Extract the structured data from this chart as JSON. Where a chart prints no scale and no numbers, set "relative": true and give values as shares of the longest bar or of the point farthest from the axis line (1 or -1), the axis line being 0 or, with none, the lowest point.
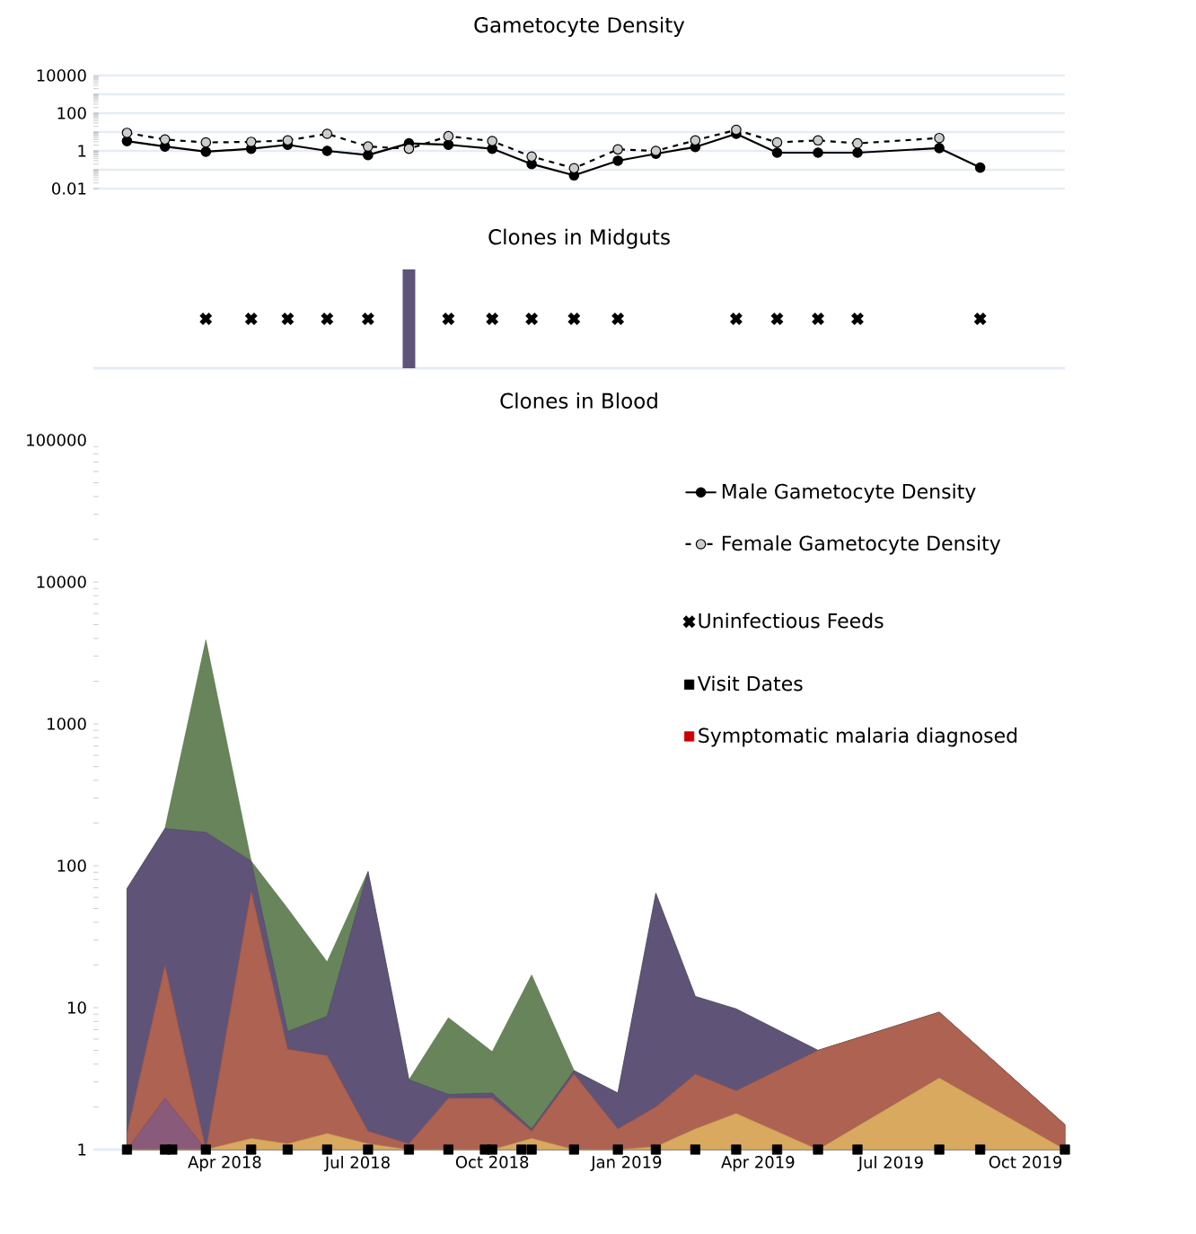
{
  "chart_data": [
    {
      "type": "line",
      "title": "Gametocyte Density",
      "xlim": [
        "2018-01-01",
        "2019-10-28"
      ],
      "ylim": [
        0.01,
        10000
      ],
      "legend": "bottom right",
      "log": true,
      "yticks": [
        0.01,
        {
          "value": 0.1,
          "label": null
        },
        1,
        {
          "value": 10,
          "label": null
        },
        100,
        {
          "value": 1000,
          "label": null
        },
        10000
      ],
      "grid": "y",
      "tick_labels": "y",
      "marker": "circle",
      "series": [
        {
          "name": "Male Gametocyte Density",
          "color": "#000000",
          "line_style": "solid",
          "x": [
            "2018-01-24",
            "2018-02-19",
            "2018-03-19",
            "2018-04-19",
            "2018-05-14",
            "2018-06-10",
            "2018-07-08",
            "2018-08-05",
            "2018-09-01",
            "2018-10-01",
            "2018-10-28",
            "2018-11-26",
            "2018-12-26",
            "2019-01-21",
            "2019-02-17",
            "2019-03-17",
            "2019-04-14",
            "2019-05-12",
            "2019-06-08",
            "2019-08-03",
            "2019-08-31"
          ],
          "values": [
            3.3,
            1.7,
            0.9,
            1.3,
            2.1,
            1,
            0.6,
            2.5,
            2.1,
            1.3,
            0.2,
            0.05,
            0.3,
            0.7,
            1.6,
            8,
            0.8,
            0.8,
            0.8,
            1.4,
            0.13
          ]
        },
        {
          "name": "Female Gametocyte Density",
          "color": "#cccccc",
          "line_style": "dashed",
          "x": [
            "2018-01-24",
            "2018-02-19",
            "2018-03-19",
            "2018-04-19",
            "2018-05-14",
            "2018-06-10",
            "2018-07-08",
            "2018-08-05",
            "2018-09-01",
            "2018-10-01",
            "2018-10-28",
            "2018-11-26",
            "2018-12-26",
            "2019-01-21",
            "2019-02-17",
            "2019-03-17",
            "2019-04-14",
            "2019-05-12",
            "2019-06-08",
            "2019-08-03"
          ],
          "values": [
            9,
            4,
            2.8,
            3,
            3.6,
            8,
            1.7,
            1.3,
            6,
            3.3,
            0.5,
            0.12,
            1.2,
            1,
            3.6,
            13,
            2.8,
            3.6,
            2.5,
            4.8
          ]
        }
      ]
    },
    {
      "type": "scatter",
      "title": "Clones in Midguts",
      "xlim": [
        "2018-01-01",
        "2019-10-28"
      ],
      "relative": true,
      "tick_labels": false,
      "legend": "bottom right",
      "series": [
        {
          "name": "Uninfectious Feeds",
          "type": "scatter",
          "marker": "cross",
          "color": "#000000",
          "x": [
            "2018-03-19",
            "2018-04-19",
            "2018-05-14",
            "2018-06-10",
            "2018-07-08",
            "2018-09-01",
            "2018-10-01",
            "2018-10-28",
            "2018-11-26",
            "2018-12-26",
            "2019-03-17",
            "2019-04-14",
            "2019-05-12",
            "2019-06-08",
            "2019-08-31"
          ],
          "values": [
            0.5,
            0.5,
            0.5,
            0.5,
            0.5,
            0.5,
            0.5,
            0.5,
            0.5,
            0.5,
            0.5,
            0.5,
            0.5,
            0.5,
            0.5
          ]
        },
        {
          "type": "bar",
          "color": "#5f5378",
          "x": [
            "2018-08-05"
          ],
          "values": [
            1
          ]
        }
      ]
    },
    {
      "type": "area",
      "title": "Clones in Blood",
      "xlim": [
        "2018-01-01",
        "2019-10-28"
      ],
      "ylim": [
        1,
        100000
      ],
      "log": true,
      "yticks": [
        1,
        10,
        100,
        1000,
        10000,
        100000
      ],
      "xticks": [
        {
          "value": "2018-04-01",
          "label": "Apr 2018"
        },
        {
          "value": "2018-07-01",
          "label": "Jul 2018"
        },
        {
          "value": "2018-10-01",
          "label": "Oct 2018"
        },
        {
          "value": "2019-01-01",
          "label": "Jan 2019"
        },
        {
          "value": "2019-04-01",
          "label": "Apr 2019"
        },
        {
          "value": "2019-07-01",
          "label": "Jul 2019"
        },
        {
          "value": "2019-10-01",
          "label": "Oct 2019"
        }
      ],
      "legend": "top right",
      "x": [
        "2018-01-24",
        "2018-02-19",
        "2018-03-19",
        "2018-04-19",
        "2018-05-14",
        "2018-06-10",
        "2018-07-08",
        "2018-08-05",
        "2018-09-01",
        "2018-10-01",
        "2018-10-28",
        "2018-11-26",
        "2018-12-26",
        "2019-01-21",
        "2019-02-17",
        "2019-03-17",
        "2019-05-12",
        "2019-08-03",
        "2019-10-28"
      ],
      "series": [
        {
          "color": "#67845a",
          "values": [
            69,
            183,
            3900,
            108,
            50,
            21,
            91,
            3.1,
            8.5,
            4.9,
            17,
            3.6,
            2.5,
            64,
            12,
            9.8,
            5,
            9.3,
            1.5
          ]
        },
        {
          "color": "#5f5378",
          "values": [
            69,
            183,
            172,
            108,
            6.8,
            8.7,
            91,
            3.1,
            2.45,
            2.5,
            1.4,
            3.6,
            2.5,
            64,
            12,
            9.8,
            5,
            9.3,
            1.5
          ]
        },
        {
          "color": "#ad6252",
          "values": [
            1.3,
            20,
            1,
            67,
            5.1,
            4.6,
            1.35,
            1.1,
            2.3,
            2.3,
            1.35,
            3.4,
            1.4,
            2,
            3.4,
            2.6,
            5,
            9.3,
            1.5
          ]
        },
        {
          "color": "#8a5a7a",
          "values": [
            1,
            2.3,
            1,
            null,
            null,
            null,
            null,
            null,
            null,
            null,
            null,
            null,
            null,
            null,
            null,
            null,
            null,
            null,
            null
          ]
        },
        {
          "color": "#d9a95f",
          "values": [
            1,
            1,
            1,
            1.2,
            1.1,
            1.3,
            1.1,
            1,
            1,
            1,
            1.2,
            1,
            1,
            1.05,
            1.4,
            1.8,
            1,
            3.2,
            1
          ]
        },
        {
          "name": "Visit Dates",
          "type": "scatter",
          "marker": "square",
          "color": "#000000",
          "x": [
            "2018-01-24",
            "2018-02-19",
            "2018-02-24",
            "2018-03-19",
            "2018-04-19",
            "2018-05-14",
            "2018-06-10",
            "2018-07-08",
            "2018-08-05",
            "2018-09-01",
            "2018-09-26",
            "2018-10-01",
            "2018-10-21",
            "2018-10-28",
            "2018-11-26",
            "2018-12-26",
            "2019-01-21",
            "2019-02-17",
            "2019-03-17",
            "2019-04-14",
            "2019-05-12",
            "2019-06-08",
            "2019-08-03",
            "2019-08-31",
            "2019-10-28"
          ],
          "values": [
            1,
            1,
            1,
            1,
            1,
            1,
            1,
            1,
            1,
            1,
            1,
            1,
            1,
            1,
            1,
            1,
            1,
            1,
            1,
            1,
            1,
            1,
            1,
            1,
            1
          ]
        },
        {
          "name": "Symptomatic malaria diagnosed",
          "type": "scatter",
          "marker": "square",
          "color": "#cc0000",
          "values": [
            null,
            null,
            null,
            null,
            null,
            null,
            null,
            null,
            null,
            null,
            null,
            null,
            null,
            null,
            null,
            null,
            null,
            null,
            null
          ]
        }
      ]
    }
  ]
}
